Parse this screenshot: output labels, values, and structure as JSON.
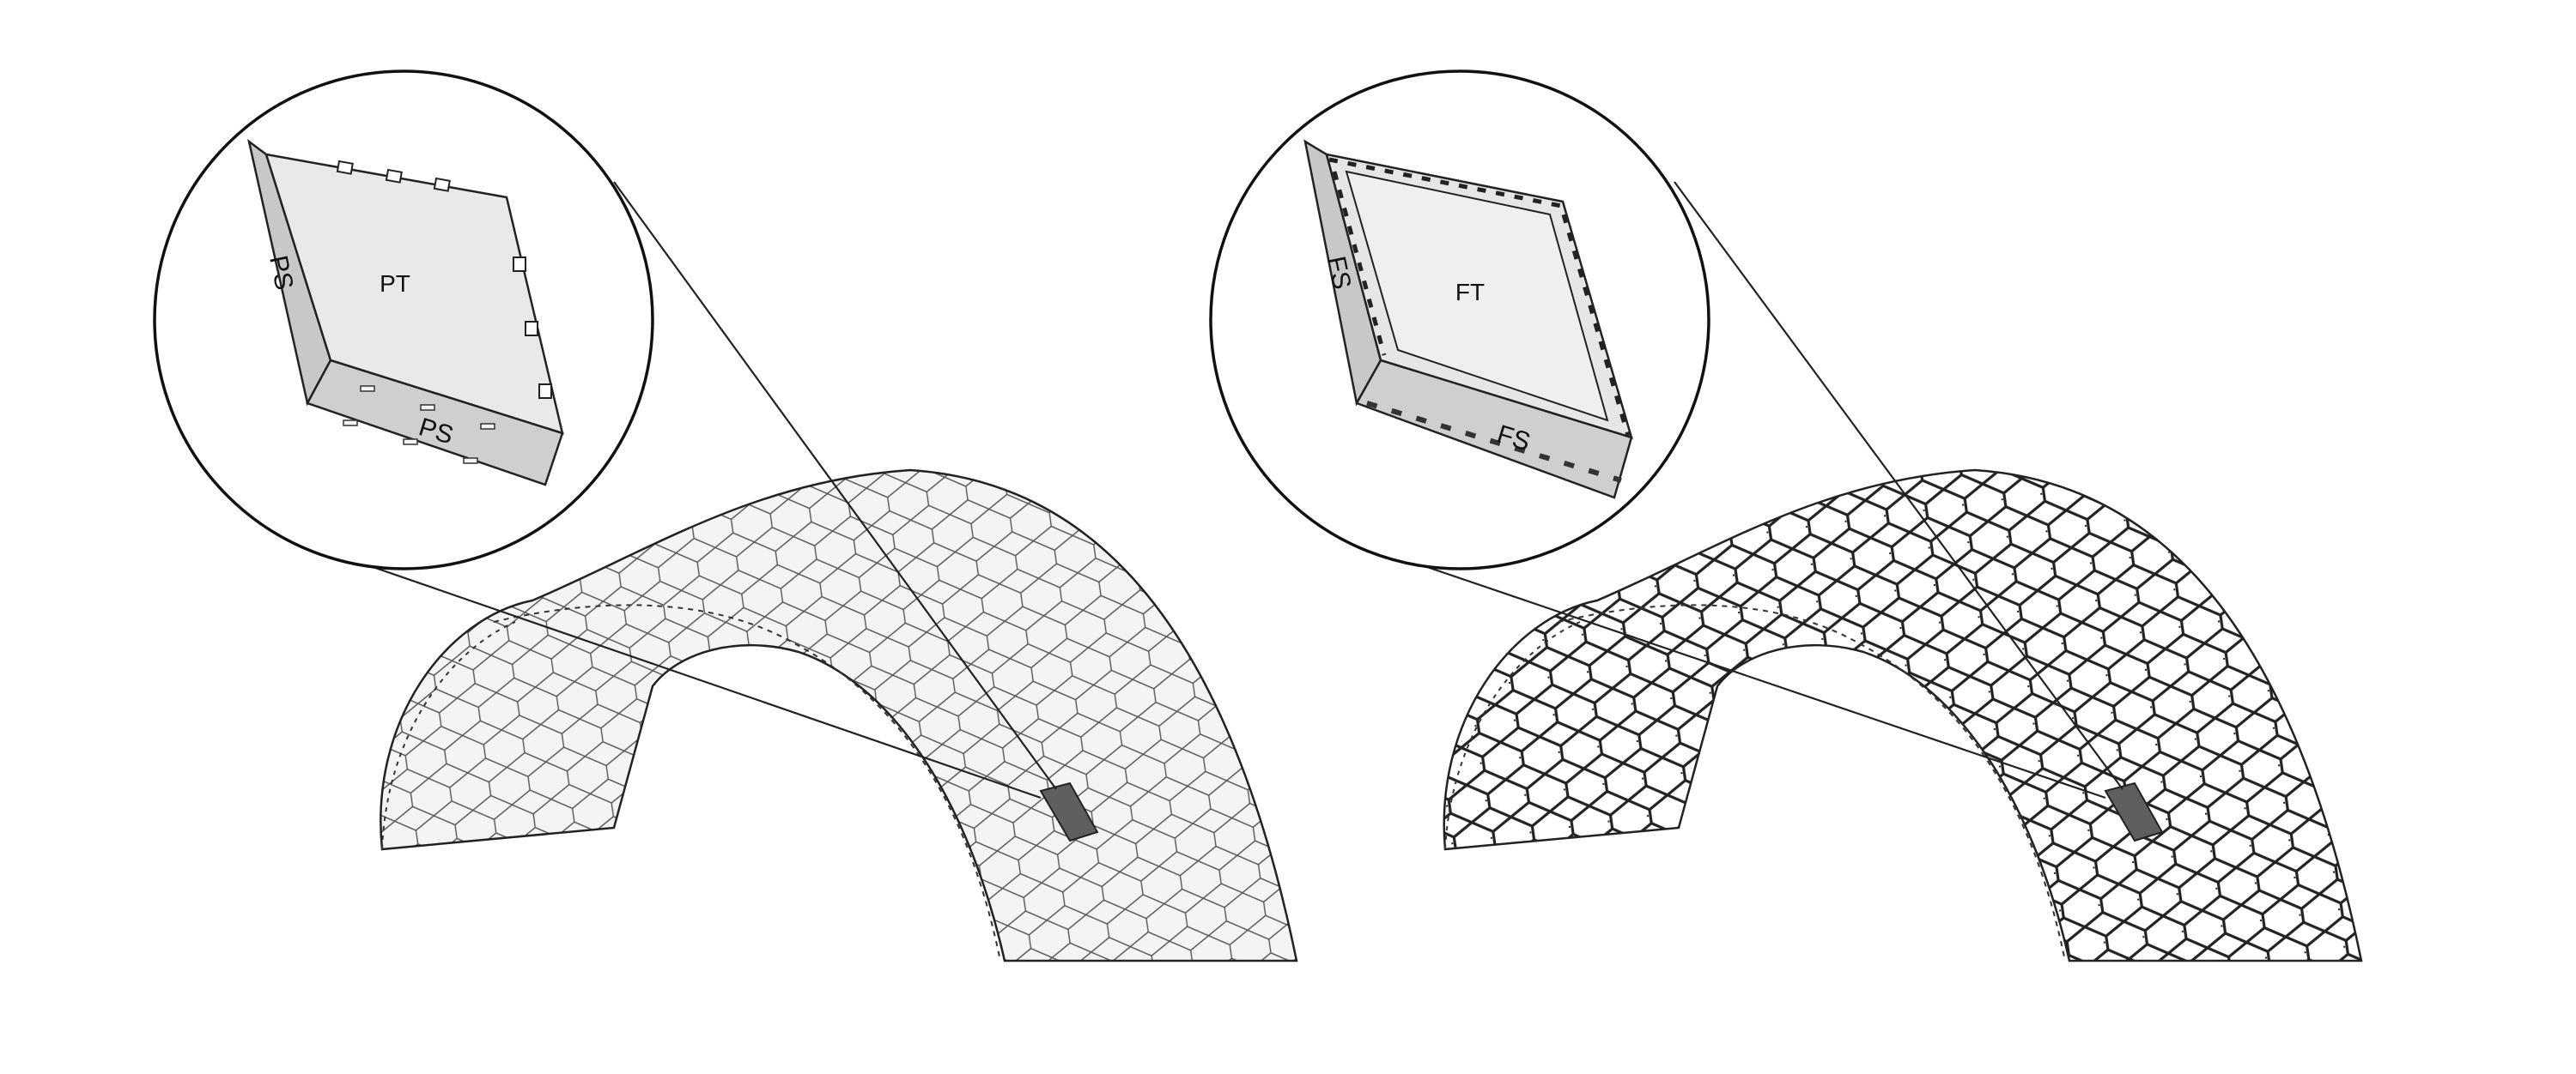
{
  "figure": {
    "left_detail": {
      "top_label": "PT",
      "side_label_left": "PS",
      "side_label_front": "PS"
    },
    "right_detail": {
      "top_label": "FT",
      "side_label_left": "FS",
      "side_label_front": "FS"
    },
    "colors": {
      "stroke": "#222222",
      "panel_light": "#e9e9e9",
      "panel_side": "#c8c8c8",
      "highlight_tile": "#5f5f5f",
      "background": "#ffffff"
    },
    "icons": {
      "left_arch": "plate-vault-drawing",
      "right_arch": "frame-vault-drawing"
    }
  }
}
